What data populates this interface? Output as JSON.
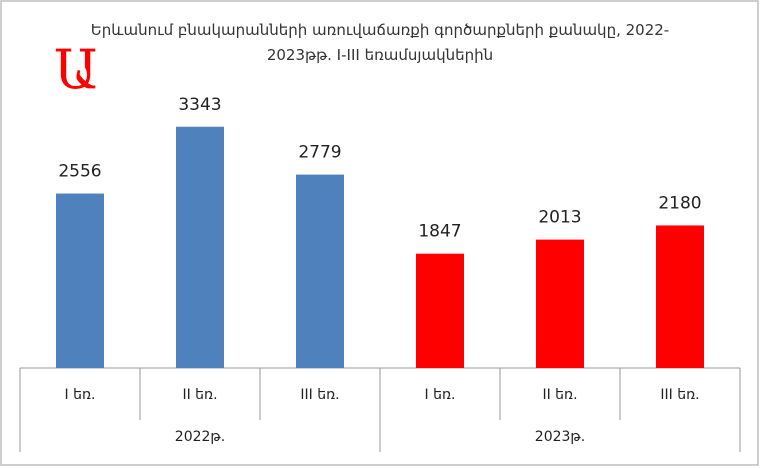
{
  "chart_data": {
    "type": "bar",
    "title": "Երևանում բնակարանների առուվաճառքի գործարքների քանակը, 2022-2023թթ. I-III եռամսյակներին",
    "annotation": "Ա",
    "annotation_color": "#ff0000",
    "ylim": [
      500,
      4000
    ],
    "groups": [
      {
        "name": "2022թ.",
        "color": "#4f81bd",
        "categories": [
          "I եռ.",
          "II եռ.",
          "III եռ."
        ],
        "values": [
          2556,
          3343,
          2779
        ]
      },
      {
        "name": "2023թ.",
        "color": "#ff0000",
        "categories": [
          "I եռ.",
          "II եռ.",
          "III եռ."
        ],
        "values": [
          1847,
          2013,
          2180
        ]
      }
    ]
  }
}
